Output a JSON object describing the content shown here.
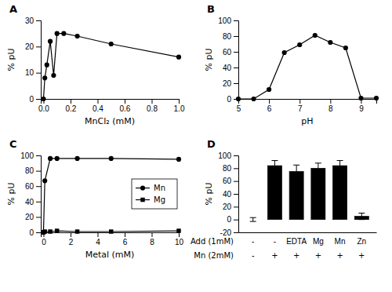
{
  "chart_data": [
    {
      "type": "line",
      "title": "A",
      "x": [
        0,
        0.01,
        0.025,
        0.05,
        0.075,
        0.1,
        0.15,
        0.25,
        0.5,
        1.0
      ],
      "values": [
        0,
        8,
        13,
        22,
        9,
        25,
        25,
        24,
        21,
        16
      ],
      "xlabel": "MnCl₂ (mM)",
      "ylabel": "% pU",
      "xlim": [
        -0.02,
        1.0
      ],
      "xticks": [
        {
          "value": 0,
          "label": "0.0"
        },
        0.2,
        0.4,
        0.6,
        0.8,
        {
          "value": 1.0,
          "label": "1.0"
        }
      ],
      "ylim": [
        0,
        30
      ],
      "yticks": [
        0,
        10,
        20,
        30
      ],
      "color": "#000000",
      "marker": "circle",
      "line_style": "solid",
      "grid": false
    },
    {
      "type": "line",
      "title": "B",
      "x": [
        5.0,
        5.5,
        6.0,
        6.5,
        7.0,
        7.5,
        8.0,
        8.5,
        9.0,
        9.5
      ],
      "values": [
        0,
        0,
        12,
        59,
        69,
        81,
        72,
        65,
        1,
        1
      ],
      "xlabel": "pH",
      "ylabel": "% pU",
      "xlim": [
        5.0,
        9.5
      ],
      "xticks": [
        5,
        6,
        7,
        8,
        9
      ],
      "ylim": [
        0,
        100
      ],
      "yticks": [
        0,
        20,
        40,
        60,
        80,
        100
      ],
      "color": "#000000",
      "marker": "circle",
      "line_style": "solid",
      "grid": false
    },
    {
      "type": "line",
      "title": "C",
      "x": [
        0,
        0.1,
        0.5,
        1.0,
        2.5,
        5.0,
        10.0
      ],
      "series": [
        {
          "name": "Mn",
          "color": "#000000",
          "marker": "circle",
          "line_style": "solid",
          "values": [
            0,
            67,
            96,
            96,
            96,
            96,
            95
          ]
        },
        {
          "name": "Mg",
          "color": "#000000",
          "marker": "square",
          "line_style": "solid",
          "values": [
            0,
            1,
            1,
            2,
            1,
            1,
            2
          ]
        }
      ],
      "xlabel": "Metal (mM)",
      "ylabel": "% pU",
      "xlim": [
        -0.2,
        10
      ],
      "xticks": [
        0,
        2,
        4,
        6,
        8,
        10
      ],
      "ylim": [
        0,
        100
      ],
      "yticks": [
        0,
        20,
        40,
        60,
        80,
        100
      ],
      "legend": "right",
      "grid": false
    },
    {
      "type": "bar",
      "title": "D",
      "categories": [
        "-",
        "-",
        "EDTA",
        "Mg",
        "Mn",
        "Zn"
      ],
      "values": [
        0,
        84,
        75,
        80,
        84,
        5
      ],
      "errors": [
        3,
        8,
        10,
        8,
        8,
        5
      ],
      "xlabel": "Add (1mM)",
      "categories_row2": [
        "-",
        "+",
        "+",
        "+",
        "+",
        "+"
      ],
      "xlabel_row2": "Mn (2mM)",
      "ylabel": "% pU",
      "ylim": [
        -20,
        100
      ],
      "yticks": [
        -20,
        0,
        20,
        40,
        60,
        80,
        100
      ],
      "color": "#000000",
      "grid": false
    }
  ]
}
